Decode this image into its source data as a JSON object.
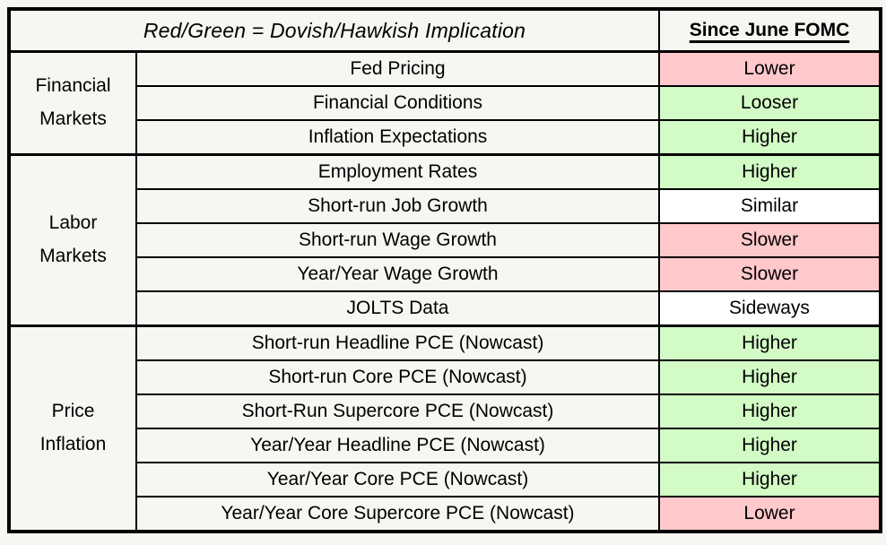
{
  "page": {
    "background": "#F7F6F2",
    "border_color": "#000000"
  },
  "colors": {
    "red": "#FFC8CB",
    "green": "#D2FBC6",
    "white": "#FFFFFF"
  },
  "header": {
    "title": "Red/Green = Dovish/Hawkish Implication",
    "column_title": "Since June FOMC"
  },
  "groups": [
    {
      "name": "Financial Markets",
      "rows": [
        {
          "label": "Fed Pricing",
          "value": "Lower",
          "tone": "red"
        },
        {
          "label": "Financial Conditions",
          "value": "Looser",
          "tone": "green"
        },
        {
          "label": "Inflation Expectations",
          "value": "Higher",
          "tone": "green"
        }
      ]
    },
    {
      "name": "Labor Markets",
      "rows": [
        {
          "label": "Employment Rates",
          "value": "Higher",
          "tone": "green"
        },
        {
          "label": "Short-run Job Growth",
          "value": "Similar",
          "tone": "white"
        },
        {
          "label": "Short-run Wage Growth",
          "value": "Slower",
          "tone": "red"
        },
        {
          "label": "Year/Year Wage Growth",
          "value": "Slower",
          "tone": "red"
        },
        {
          "label": "JOLTS Data",
          "value": "Sideways",
          "tone": "white"
        }
      ]
    },
    {
      "name": "Price Inflation",
      "rows": [
        {
          "label": "Short-run Headline PCE (Nowcast)",
          "value": "Higher",
          "tone": "green"
        },
        {
          "label": "Short-run Core PCE (Nowcast)",
          "value": "Higher",
          "tone": "green"
        },
        {
          "label": "Short-Run Supercore PCE (Nowcast)",
          "value": "Higher",
          "tone": "green"
        },
        {
          "label": "Year/Year Headline PCE (Nowcast)",
          "value": "Higher",
          "tone": "green"
        },
        {
          "label": "Year/Year Core PCE (Nowcast)",
          "value": "Higher",
          "tone": "green"
        },
        {
          "label": "Year/Year Core Supercore PCE (Nowcast)",
          "value": "Lower",
          "tone": "red"
        }
      ]
    }
  ],
  "chart_data": {
    "type": "table",
    "title": "Red/Green = Dovish/Hawkish Implication",
    "value_column_header": "Since June FOMC",
    "color_coding": "red cell = dovish implication, green cell = hawkish implication, white cell = neutral",
    "rows": [
      {
        "group": "Financial Markets",
        "indicator": "Fed Pricing",
        "value": "Lower",
        "color": "red"
      },
      {
        "group": "Financial Markets",
        "indicator": "Financial Conditions",
        "value": "Looser",
        "color": "green"
      },
      {
        "group": "Financial Markets",
        "indicator": "Inflation Expectations",
        "value": "Higher",
        "color": "green"
      },
      {
        "group": "Labor Markets",
        "indicator": "Employment Rates",
        "value": "Higher",
        "color": "green"
      },
      {
        "group": "Labor Markets",
        "indicator": "Short-run Job Growth",
        "value": "Similar",
        "color": "white"
      },
      {
        "group": "Labor Markets",
        "indicator": "Short-run Wage Growth",
        "value": "Slower",
        "color": "red"
      },
      {
        "group": "Labor Markets",
        "indicator": "Year/Year Wage Growth",
        "value": "Slower",
        "color": "red"
      },
      {
        "group": "Labor Markets",
        "indicator": "JOLTS Data",
        "value": "Sideways",
        "color": "white"
      },
      {
        "group": "Price Inflation",
        "indicator": "Short-run Headline PCE (Nowcast)",
        "value": "Higher",
        "color": "green"
      },
      {
        "group": "Price Inflation",
        "indicator": "Short-run Core PCE (Nowcast)",
        "value": "Higher",
        "color": "green"
      },
      {
        "group": "Price Inflation",
        "indicator": "Short-Run Supercore PCE (Nowcast)",
        "value": "Higher",
        "color": "green"
      },
      {
        "group": "Price Inflation",
        "indicator": "Year/Year Headline PCE (Nowcast)",
        "value": "Higher",
        "color": "green"
      },
      {
        "group": "Price Inflation",
        "indicator": "Year/Year Core PCE (Nowcast)",
        "value": "Higher",
        "color": "green"
      },
      {
        "group": "Price Inflation",
        "indicator": "Year/Year Core Supercore PCE (Nowcast)",
        "value": "Lower",
        "color": "red"
      }
    ]
  }
}
